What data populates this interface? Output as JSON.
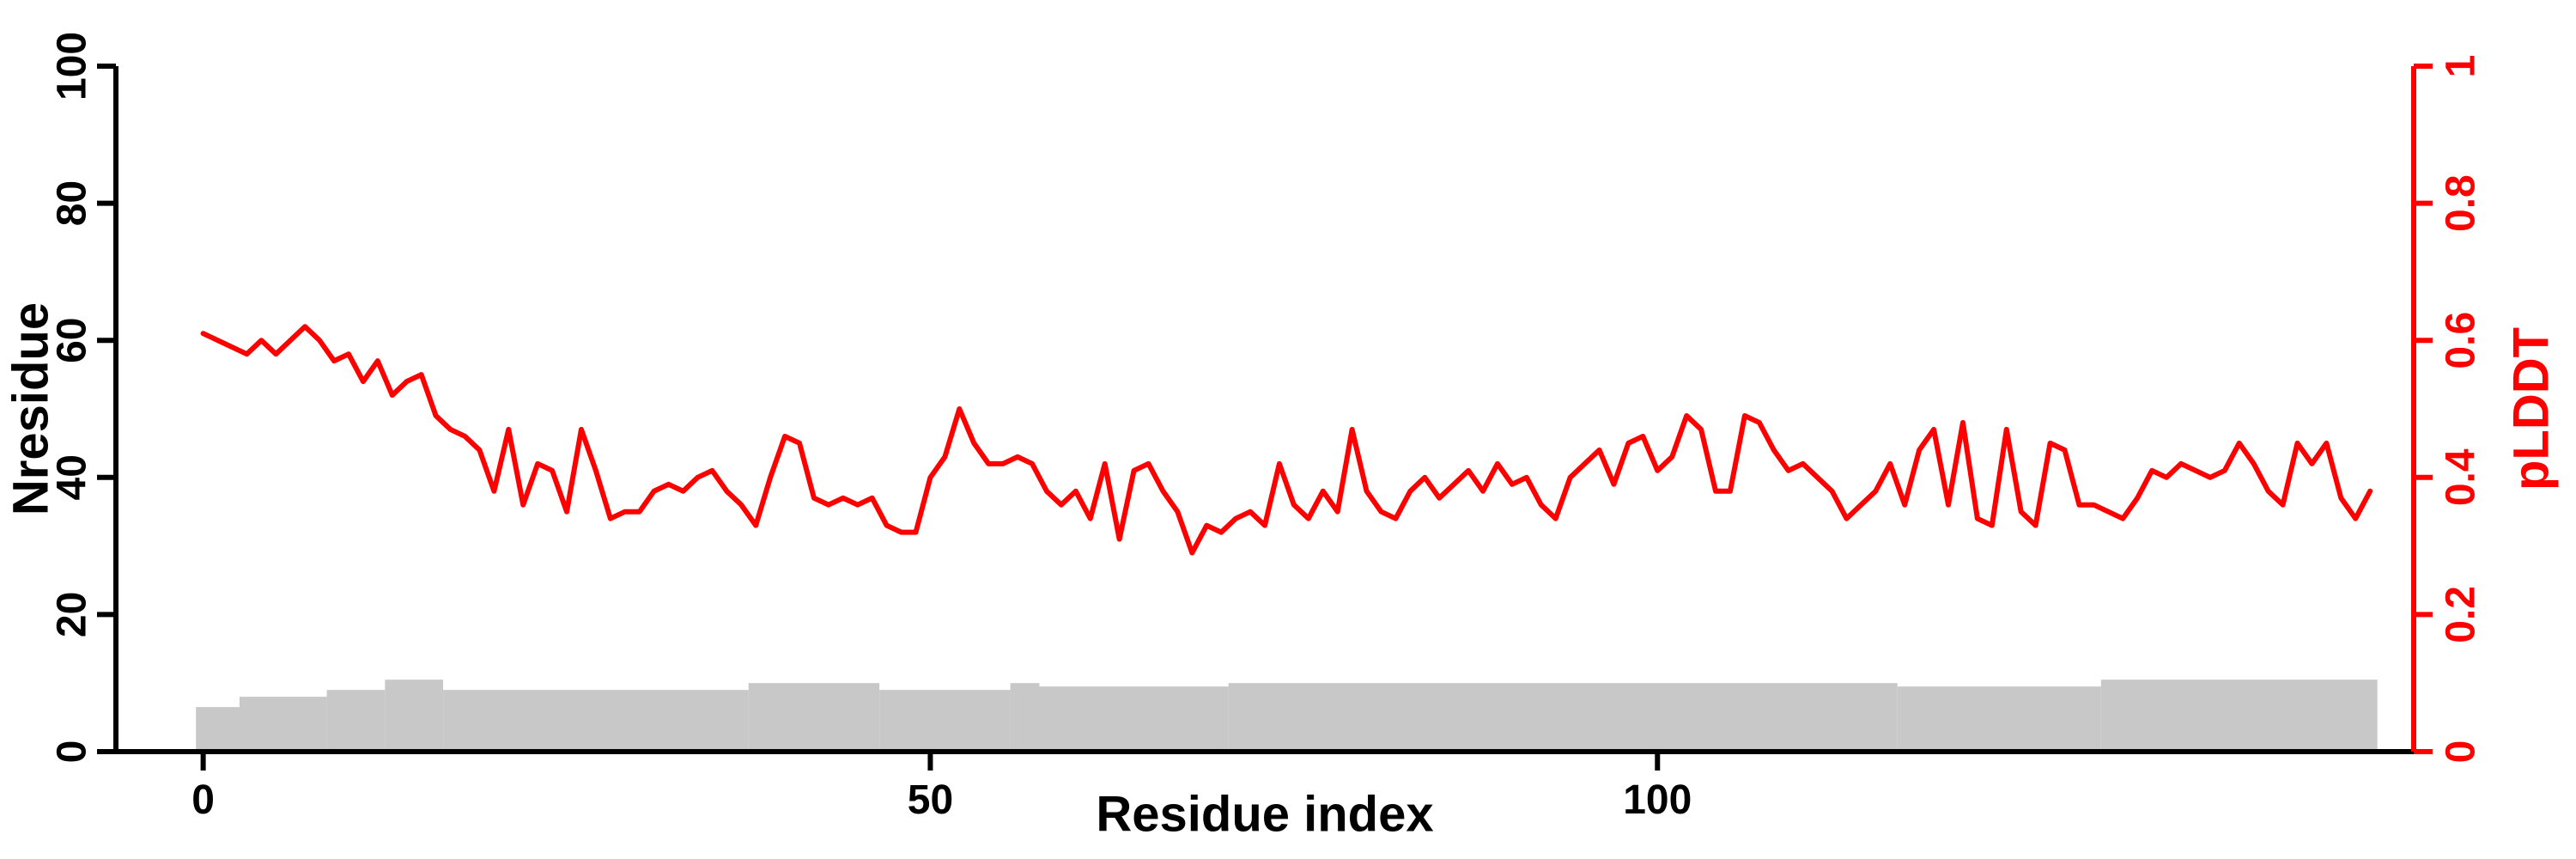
{
  "figure": {
    "background": "#ffffff"
  },
  "chart_data": {
    "type": "line",
    "title": "",
    "xlabel": "Residue index",
    "x_ticks": [
      0,
      50,
      100
    ],
    "xlim": [
      -6,
      152
    ],
    "grid": false,
    "legend": "none",
    "left_axis": {
      "label": "Nresidue",
      "range": [
        0,
        100
      ],
      "ticks": [
        0,
        20,
        40,
        60,
        80,
        100
      ],
      "color": "#000000"
    },
    "right_axis": {
      "label": "pLDDT",
      "range": [
        0,
        1
      ],
      "ticks": [
        0,
        0.2,
        0.4,
        0.6,
        0.8,
        1
      ],
      "color": "#ff0000"
    },
    "series": [
      {
        "name": "pLDDT",
        "type": "line",
        "axis": "right",
        "color": "#ff0000",
        "x_start": 0,
        "x_step": 1,
        "values": [
          0.61,
          0.6,
          0.59,
          0.58,
          0.6,
          0.58,
          0.6,
          0.62,
          0.6,
          0.57,
          0.58,
          0.54,
          0.57,
          0.52,
          0.54,
          0.55,
          0.49,
          0.47,
          0.46,
          0.44,
          0.38,
          0.47,
          0.36,
          0.42,
          0.41,
          0.35,
          0.47,
          0.41,
          0.34,
          0.35,
          0.35,
          0.38,
          0.39,
          0.38,
          0.4,
          0.41,
          0.38,
          0.36,
          0.33,
          0.4,
          0.46,
          0.45,
          0.37,
          0.36,
          0.37,
          0.36,
          0.37,
          0.33,
          0.32,
          0.32,
          0.4,
          0.43,
          0.5,
          0.45,
          0.42,
          0.42,
          0.43,
          0.42,
          0.38,
          0.36,
          0.38,
          0.34,
          0.42,
          0.31,
          0.41,
          0.42,
          0.38,
          0.35,
          0.29,
          0.33,
          0.32,
          0.34,
          0.35,
          0.33,
          0.42,
          0.36,
          0.34,
          0.38,
          0.35,
          0.47,
          0.38,
          0.35,
          0.34,
          0.38,
          0.4,
          0.37,
          0.39,
          0.41,
          0.38,
          0.42,
          0.39,
          0.4,
          0.36,
          0.34,
          0.4,
          0.42,
          0.44,
          0.39,
          0.45,
          0.46,
          0.41,
          0.43,
          0.49,
          0.47,
          0.38,
          0.38,
          0.49,
          0.48,
          0.44,
          0.41,
          0.42,
          0.4,
          0.38,
          0.34,
          0.36,
          0.38,
          0.42,
          0.36,
          0.44,
          0.47,
          0.36,
          0.48,
          0.34,
          0.33,
          0.47,
          0.35,
          0.33,
          0.45,
          0.44,
          0.36,
          0.36,
          0.35,
          0.34,
          0.37,
          0.41,
          0.4,
          0.42,
          0.41,
          0.4,
          0.41,
          0.45,
          0.42,
          0.38,
          0.36,
          0.45,
          0.42,
          0.45,
          0.37,
          0.34,
          0.38
        ]
      },
      {
        "name": "Nresidue",
        "type": "bar",
        "axis": "left",
        "color": "#c8c8c8",
        "segments": [
          {
            "start": 0,
            "end": 2,
            "value": 6.5
          },
          {
            "start": 3,
            "end": 8,
            "value": 8
          },
          {
            "start": 9,
            "end": 12,
            "value": 9
          },
          {
            "start": 13,
            "end": 16,
            "value": 10.5
          },
          {
            "start": 17,
            "end": 37,
            "value": 9
          },
          {
            "start": 38,
            "end": 46,
            "value": 10
          },
          {
            "start": 47,
            "end": 55,
            "value": 9
          },
          {
            "start": 56,
            "end": 57,
            "value": 10
          },
          {
            "start": 58,
            "end": 70,
            "value": 9.5
          },
          {
            "start": 71,
            "end": 116,
            "value": 10
          },
          {
            "start": 117,
            "end": 130,
            "value": 9.5
          },
          {
            "start": 131,
            "end": 149,
            "value": 10.5
          }
        ]
      }
    ]
  }
}
